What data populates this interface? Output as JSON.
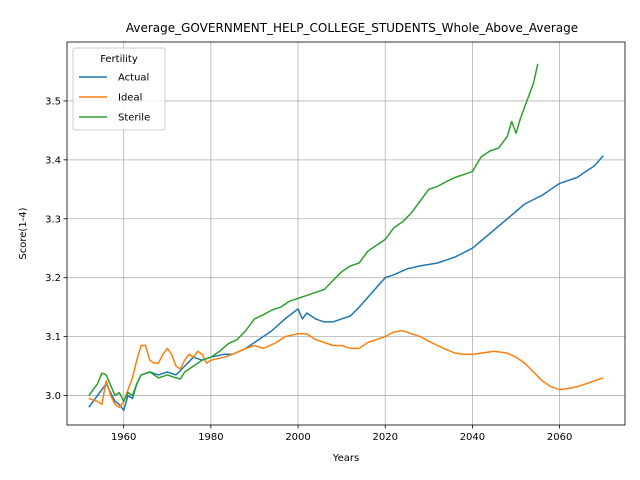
{
  "chart_data": {
    "type": "line",
    "title": "Average_GOVERNMENT_HELP_COLLEGE_STUDENTS_Whole_Above_Average",
    "xlabel": "Years",
    "ylabel": "Score(1-4)",
    "xlim": [
      1947,
      2075
    ],
    "ylim": [
      2.95,
      3.6
    ],
    "xticks": [
      1960,
      1980,
      2000,
      2020,
      2040,
      2060
    ],
    "yticks": [
      3.0,
      3.1,
      3.2,
      3.3,
      3.4,
      3.5
    ],
    "ytick_labels": [
      "3.0",
      "3.1",
      "3.2",
      "3.3",
      "3.4",
      "3.5"
    ],
    "grid": true,
    "legend": {
      "title": "Fertility",
      "placement": "top-left"
    },
    "series": [
      {
        "name": "Actual",
        "color": "#1f77b4",
        "x": [
          1952,
          1954,
          1956,
          1958,
          1959,
          1960,
          1961,
          1962,
          1963,
          1964,
          1966,
          1968,
          1970,
          1972,
          1974,
          1976,
          1978,
          1980,
          1983,
          1985,
          1988,
          1991,
          1994,
          1997,
          2000,
          2001,
          2002,
          2004,
          2006,
          2008,
          2010,
          2012,
          2014,
          2017,
          2020,
          2022,
          2025,
          2028,
          2032,
          2036,
          2040,
          2044,
          2048,
          2052,
          2056,
          2060,
          2064,
          2068,
          2070
        ],
        "y": [
          2.98,
          3.0,
          3.02,
          2.99,
          2.985,
          2.975,
          3.0,
          2.995,
          3.02,
          3.035,
          3.04,
          3.035,
          3.04,
          3.035,
          3.05,
          3.065,
          3.06,
          3.065,
          3.07,
          3.07,
          3.08,
          3.095,
          3.11,
          3.13,
          3.147,
          3.13,
          3.14,
          3.13,
          3.125,
          3.125,
          3.13,
          3.135,
          3.15,
          3.175,
          3.2,
          3.205,
          3.215,
          3.22,
          3.225,
          3.235,
          3.25,
          3.275,
          3.3,
          3.325,
          3.34,
          3.36,
          3.37,
          3.39,
          3.407
        ]
      },
      {
        "name": "Ideal",
        "color": "#ff7f0e",
        "x": [
          1952,
          1954,
          1955,
          1956,
          1957,
          1958,
          1959,
          1960,
          1962,
          1963,
          1964,
          1965,
          1966,
          1967,
          1968,
          1969,
          1970,
          1971,
          1972,
          1973,
          1974,
          1975,
          1976,
          1977,
          1978,
          1979,
          1980,
          1983,
          1985,
          1988,
          1990,
          1992,
          1995,
          1997,
          2000,
          2002,
          2004,
          2006,
          2008,
          2010,
          2012,
          2014,
          2016,
          2018,
          2020,
          2022,
          2024,
          2026,
          2028,
          2030,
          2032,
          2034,
          2036,
          2038,
          2040,
          2042,
          2045,
          2048,
          2050,
          2052,
          2054,
          2056,
          2058,
          2060,
          2062,
          2064,
          2066,
          2068,
          2070
        ],
        "y": [
          2.995,
          2.99,
          2.985,
          3.025,
          3.0,
          2.985,
          2.98,
          2.99,
          3.03,
          3.06,
          3.085,
          3.085,
          3.06,
          3.055,
          3.055,
          3.07,
          3.08,
          3.07,
          3.05,
          3.045,
          3.06,
          3.07,
          3.065,
          3.075,
          3.07,
          3.055,
          3.06,
          3.065,
          3.07,
          3.08,
          3.085,
          3.08,
          3.09,
          3.1,
          3.105,
          3.105,
          3.095,
          3.09,
          3.085,
          3.085,
          3.08,
          3.08,
          3.09,
          3.095,
          3.1,
          3.108,
          3.11,
          3.105,
          3.1,
          3.092,
          3.085,
          3.078,
          3.072,
          3.07,
          3.07,
          3.072,
          3.075,
          3.072,
          3.065,
          3.055,
          3.04,
          3.025,
          3.015,
          3.01,
          3.012,
          3.015,
          3.02,
          3.025,
          3.03
        ]
      },
      {
        "name": "Sterile",
        "color": "#2ca02c",
        "x": [
          1952,
          1954,
          1955,
          1956,
          1958,
          1959,
          1960,
          1961,
          1962,
          1963,
          1964,
          1966,
          1968,
          1970,
          1972,
          1973,
          1974,
          1976,
          1978,
          1980,
          1982,
          1984,
          1986,
          1988,
          1990,
          1992,
          1994,
          1996,
          1998,
          2000,
          2002,
          2004,
          2006,
          2008,
          2010,
          2012,
          2014,
          2016,
          2018,
          2020,
          2022,
          2024,
          2026,
          2028,
          2030,
          2032,
          2034,
          2036,
          2038,
          2040,
          2042,
          2044,
          2046,
          2048,
          2049,
          2050,
          2051,
          2052,
          2053,
          2054,
          2055
        ],
        "y": [
          3.0,
          3.02,
          3.038,
          3.035,
          3.0,
          3.005,
          2.99,
          3.005,
          3.0,
          3.02,
          3.035,
          3.04,
          3.03,
          3.035,
          3.03,
          3.028,
          3.04,
          3.05,
          3.06,
          3.065,
          3.075,
          3.088,
          3.095,
          3.11,
          3.13,
          3.137,
          3.145,
          3.15,
          3.16,
          3.165,
          3.17,
          3.175,
          3.18,
          3.195,
          3.21,
          3.22,
          3.225,
          3.245,
          3.255,
          3.265,
          3.285,
          3.295,
          3.31,
          3.33,
          3.35,
          3.355,
          3.363,
          3.37,
          3.375,
          3.38,
          3.405,
          3.415,
          3.42,
          3.44,
          3.465,
          3.445,
          3.47,
          3.49,
          3.51,
          3.53,
          3.563
        ]
      }
    ]
  }
}
